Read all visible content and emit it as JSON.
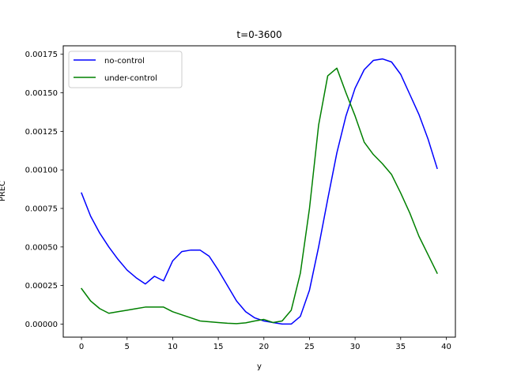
{
  "chart_data": {
    "type": "line",
    "title": "t=0-3600",
    "xlabel": "y",
    "ylabel": "PREC",
    "xlim": [
      -2,
      41
    ],
    "ylim": [
      -8.5e-05,
      0.001805
    ],
    "xticks": [
      0,
      5,
      10,
      15,
      20,
      25,
      30,
      35,
      40
    ],
    "xtick_labels": [
      "0",
      "5",
      "10",
      "15",
      "20",
      "25",
      "30",
      "35",
      "40"
    ],
    "yticks": [
      0,
      0.00025,
      0.0005,
      0.00075,
      0.001,
      0.00125,
      0.0015,
      0.00175
    ],
    "ytick_labels": [
      "0.00000",
      "0.00025",
      "0.00050",
      "0.00075",
      "0.00100",
      "0.00125",
      "0.00150",
      "0.00175"
    ],
    "grid": false,
    "legend_position": "top-left",
    "x": [
      0,
      1,
      2,
      3,
      4,
      5,
      6,
      7,
      8,
      9,
      10,
      11,
      12,
      13,
      14,
      15,
      16,
      17,
      18,
      19,
      20,
      21,
      22,
      23,
      24,
      25,
      26,
      27,
      28,
      29,
      30,
      31,
      32,
      33,
      34,
      35,
      36,
      37,
      38,
      39
    ],
    "series": [
      {
        "name": "no-control",
        "color": "#0000ff",
        "values": [
          0.00085,
          0.0007,
          0.00059,
          0.0005,
          0.00042,
          0.00035,
          0.0003,
          0.00026,
          0.00031,
          0.00028,
          0.00041,
          0.00047,
          0.00048,
          0.00048,
          0.00044,
          0.00035,
          0.00025,
          0.00015,
          8e-05,
          4e-05,
          2e-05,
          1e-05,
          0.0,
          0.0,
          5e-05,
          0.00022,
          0.0005,
          0.00081,
          0.00111,
          0.00135,
          0.00153,
          0.00165,
          0.00171,
          0.00172,
          0.0017,
          0.00162,
          0.00149,
          0.00136,
          0.0012,
          0.00101
        ]
      },
      {
        "name": "under-control",
        "color": "#008000",
        "values": [
          0.00023,
          0.00015,
          0.0001,
          7e-05,
          8e-05,
          9e-05,
          0.0001,
          0.00011,
          0.00011,
          0.00011,
          8e-05,
          6e-05,
          4e-05,
          2e-05,
          1.5e-05,
          1e-05,
          5e-06,
          3e-06,
          8e-06,
          2e-05,
          3e-05,
          1e-05,
          2e-05,
          9e-05,
          0.00033,
          0.00075,
          0.00129,
          0.00161,
          0.00166,
          0.0015,
          0.00135,
          0.00118,
          0.0011,
          0.00104,
          0.00097,
          0.00085,
          0.00072,
          0.00057,
          0.00045,
          0.00033
        ]
      }
    ]
  }
}
